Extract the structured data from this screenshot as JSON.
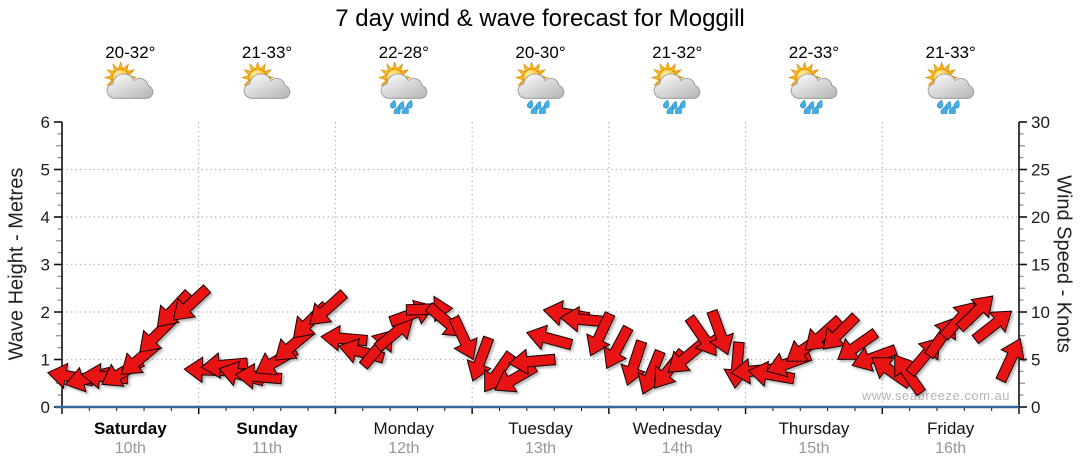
{
  "title": "7 day wind & wave forecast for Moggill",
  "watermark": "www.seabreeze.com.au",
  "days": [
    {
      "name": "Saturday",
      "date": "10th",
      "temp": "20-32°",
      "icon": "partly-cloudy",
      "bold": true
    },
    {
      "name": "Sunday",
      "date": "11th",
      "temp": "21-33°",
      "icon": "partly-cloudy",
      "bold": true
    },
    {
      "name": "Monday",
      "date": "12th",
      "temp": "22-28°",
      "icon": "showers",
      "bold": false
    },
    {
      "name": "Tuesday",
      "date": "13th",
      "temp": "20-30°",
      "icon": "showers",
      "bold": false
    },
    {
      "name": "Wednesday",
      "date": "14th",
      "temp": "21-32°",
      "icon": "showers",
      "bold": false
    },
    {
      "name": "Thursday",
      "date": "15th",
      "temp": "22-33°",
      "icon": "showers",
      "bold": false
    },
    {
      "name": "Friday",
      "date": "16th",
      "temp": "21-33°",
      "icon": "showers",
      "bold": false
    }
  ],
  "chart_data": {
    "type": "wind-arrow-series",
    "title": "7 day wind & wave forecast for Moggill",
    "x_categories": [
      "Saturday 10th",
      "Sunday 11th",
      "Monday 12th",
      "Tuesday 13th",
      "Wednesday 14th",
      "Thursday 15th",
      "Friday 16th"
    ],
    "points_per_day": 8,
    "left_axis": {
      "label": "Wave Height - Metres",
      "min": 0,
      "max": 6,
      "major_tick": 1,
      "tick_labels": [
        "0",
        "1",
        "2",
        "3",
        "4",
        "5",
        "6"
      ]
    },
    "right_axis": {
      "label": "Wind Speed - Knots",
      "min": 0,
      "max": 30,
      "major_tick": 5,
      "tick_labels": [
        "0",
        "5",
        "10",
        "15",
        "20",
        "25",
        "30"
      ]
    },
    "grid": {
      "horizontal_dotted_every_metres": 1,
      "vertical_dotted_at_day_boundaries": true
    },
    "wind_speed_knots": [
      3.2,
      3.0,
      3.2,
      3.6,
      5.0,
      7.5,
      10.2,
      10.8,
      3.9,
      4.4,
      3.4,
      3.2,
      4.8,
      6.5,
      9.0,
      10.3,
      7.2,
      5.8,
      6.2,
      7.8,
      9.8,
      10.3,
      9.0,
      7.2,
      5.0,
      3.6,
      3.0,
      4.8,
      7.2,
      9.8,
      9.2,
      7.6,
      6.2,
      4.6,
      3.6,
      3.9,
      5.2,
      7.4,
      7.8,
      4.4,
      3.8,
      3.4,
      4.6,
      6.2,
      7.6,
      7.8,
      6.4,
      5.2,
      3.8,
      3.5,
      5.4,
      7.4,
      9.2,
      10.0,
      8.6,
      5.0
    ],
    "arrow_angles_deg": [
      190,
      165,
      185,
      150,
      140,
      135,
      133,
      137,
      182,
      175,
      195,
      185,
      150,
      140,
      135,
      138,
      185,
      195,
      310,
      320,
      340,
      358,
      40,
      65,
      110,
      125,
      150,
      175,
      195,
      190,
      185,
      115,
      118,
      108,
      112,
      128,
      140,
      55,
      70,
      95,
      175,
      190,
      160,
      145,
      138,
      135,
      145,
      160,
      215,
      235,
      310,
      305,
      312,
      316,
      322,
      295
    ],
    "angle_convention": "screen angle of arrow direction: 0=pointing right, 90=pointing down, 135=down-left, 315=up-right",
    "colors": {
      "arrow_fill": "#e81414",
      "arrow_outline": "#140000",
      "bottom_axis": "#35679b",
      "axis_line": "#111111",
      "grid_dotted": "#bbbbbb",
      "minor_tick": "#8c8c8c",
      "date_text": "#979797",
      "watermark_text": "#b5b5b5"
    }
  }
}
